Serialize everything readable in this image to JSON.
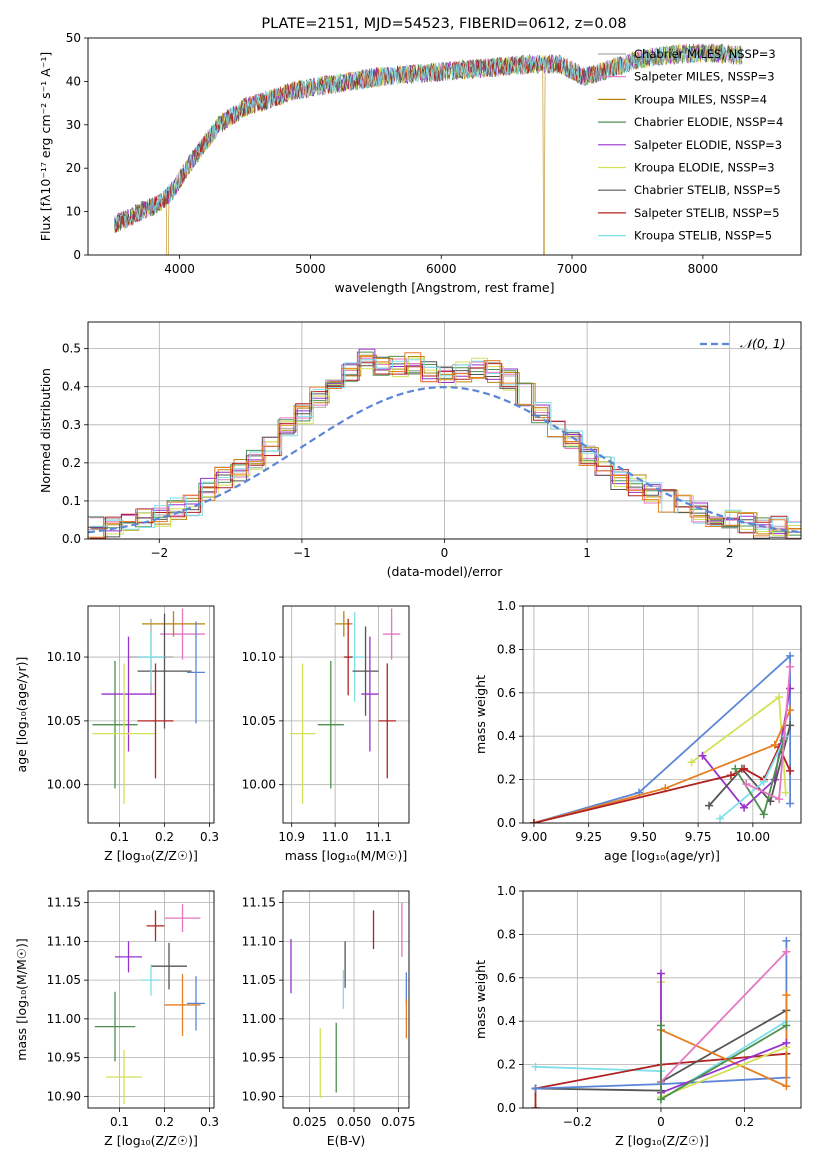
{
  "figure": {
    "title": "PLATE=2151, MJD=54523, FIBERID=0612, z=0.08"
  },
  "colors": {
    "Chabrier MILES": "#aaaaaa",
    "Salpeter MILES": "#e377c2",
    "Kroupa MILES": "#b8860b",
    "Chabrier ELODIE": "#4f8f4f",
    "Salpeter ELODIE": "#9932cc",
    "Kroupa ELODIE": "#d4e157",
    "Chabrier STELIB": "#555555",
    "Salpeter STELIB": "#b22222",
    "Kroupa STELIB": "#80deea",
    "blue": "#5b86d8",
    "orange": "#e67e22"
  },
  "chart_data": [
    {
      "type": "line",
      "id": "spectrum",
      "title": "PLATE=2151, MJD=54523, FIBERID=0612, z=0.08",
      "xlabel": "wavelength [Angstrom, rest frame]",
      "ylabel": "Flux [fλ10⁻¹⁷ erg cm⁻² s⁻¹ A⁻¹]",
      "xlim": [
        3300,
        8750
      ],
      "ylim": [
        0,
        50
      ],
      "xticks": [
        4000,
        5000,
        6000,
        7000,
        8000
      ],
      "yticks": [
        0,
        10,
        20,
        30,
        40,
        50
      ],
      "legend_position": "right",
      "legend": [
        {
          "name": "Chabrier MILES, N_SSP=3",
          "label": "Chabrier MILES, NSSP=3"
        },
        {
          "name": "Salpeter MILES, N_SSP=3",
          "label": "Salpeter MILES, NSSP=3"
        },
        {
          "name": "Kroupa MILES, N_SSP=4",
          "label": "Kroupa MILES, NSSP=4"
        },
        {
          "name": "Chabrier ELODIE, N_SSP=4",
          "label": "Chabrier ELODIE, NSSP=4"
        },
        {
          "name": "Salpeter ELODIE, N_SSP=3",
          "label": "Salpeter ELODIE, NSSP=3"
        },
        {
          "name": "Kroupa ELODIE, N_SSP=3",
          "label": "Kroupa ELODIE, NSSP=3"
        },
        {
          "name": "Chabrier STELIB, N_SSP=5",
          "label": "Chabrier STELIB, NSSP=5"
        },
        {
          "name": "Salpeter STELIB, N_SSP=5",
          "label": "Salpeter STELIB, NSSP=5"
        },
        {
          "name": "Kroupa STELIB, N_SSP=5",
          "label": "Kroupa STELIB, NSSP=5"
        }
      ],
      "continuum": [
        [
          3500,
          7
        ],
        [
          3700,
          10
        ],
        [
          3850,
          12
        ],
        [
          3950,
          15
        ],
        [
          4100,
          22
        ],
        [
          4300,
          30
        ],
        [
          4500,
          34
        ],
        [
          4700,
          36
        ],
        [
          4900,
          38
        ],
        [
          5100,
          39
        ],
        [
          5300,
          40
        ],
        [
          5500,
          41
        ],
        [
          5700,
          41.5
        ],
        [
          5900,
          42
        ],
        [
          6100,
          42.5
        ],
        [
          6300,
          43
        ],
        [
          6500,
          43.5
        ],
        [
          6700,
          44
        ],
        [
          6900,
          44
        ],
        [
          7100,
          41
        ],
        [
          7300,
          43
        ],
        [
          7500,
          45
        ],
        [
          7700,
          46
        ],
        [
          7900,
          46.5
        ],
        [
          8100,
          46.5
        ],
        [
          8300,
          46
        ]
      ]
    },
    {
      "type": "step",
      "id": "residuals",
      "xlabel": "(data-model)/error",
      "ylabel": "Normed distribution",
      "xlim": [
        -2.5,
        2.5
      ],
      "ylim": [
        0,
        0.57
      ],
      "xticks": [
        -2,
        -1,
        0,
        1,
        2
      ],
      "yticks": [
        0.0,
        0.1,
        0.2,
        0.3,
        0.4,
        0.5
      ],
      "legend": [
        {
          "name": "𝒩(0, 1)"
        }
      ],
      "histogram": [
        0.03,
        0.03,
        0.04,
        0.05,
        0.06,
        0.08,
        0.09,
        0.13,
        0.16,
        0.18,
        0.21,
        0.24,
        0.29,
        0.33,
        0.37,
        0.41,
        0.44,
        0.47,
        0.46,
        0.45,
        0.46,
        0.44,
        0.43,
        0.44,
        0.45,
        0.44,
        0.42,
        0.38,
        0.33,
        0.29,
        0.26,
        0.22,
        0.19,
        0.16,
        0.14,
        0.12,
        0.1,
        0.09,
        0.07,
        0.06,
        0.05,
        0.04,
        0.03,
        0.03,
        0.02
      ]
    },
    {
      "type": "scatter",
      "id": "age-vs-Z",
      "xlabel": "Z [log₁₀(Z/Z☉)]",
      "ylabel": "age  [log₁₀(age/yr)]",
      "xlim": [
        0.03,
        0.31
      ],
      "ylim": [
        9.97,
        10.14
      ],
      "xticks": [
        0.1,
        0.2,
        0.3
      ],
      "yticks": [
        10.0,
        10.05,
        10.1
      ],
      "points": [
        {
          "series": "Chabrier MILES",
          "x": 0.17,
          "y": 10.1,
          "xerr": 0.05,
          "yerr": 0.03
        },
        {
          "series": "Salpeter MILES",
          "x": 0.24,
          "y": 10.118,
          "xerr": 0.05,
          "yerr": 0.02
        },
        {
          "series": "Kroupa MILES",
          "x": 0.22,
          "y": 10.126,
          "xerr": 0.07,
          "yerr": 0.01
        },
        {
          "series": "Chabrier ELODIE",
          "x": 0.09,
          "y": 10.047,
          "xerr": 0.05,
          "yerr": 0.05
        },
        {
          "series": "Salpeter ELODIE",
          "x": 0.12,
          "y": 10.071,
          "xerr": 0.06,
          "yerr": 0.045
        },
        {
          "series": "Kroupa ELODIE",
          "x": 0.11,
          "y": 10.04,
          "xerr": 0.07,
          "yerr": 0.055
        },
        {
          "series": "Chabrier STELIB",
          "x": 0.2,
          "y": 10.089,
          "xerr": 0.06,
          "yerr": 0.045
        },
        {
          "series": "Salpeter STELIB",
          "x": 0.18,
          "y": 10.05,
          "xerr": 0.04,
          "yerr": 0.045
        },
        {
          "series": "Kroupa STELIB",
          "x": 0.17,
          "y": 10.1,
          "xerr": 0.03,
          "yerr": 0.02
        },
        {
          "series": "blue",
          "x": 0.27,
          "y": 10.088,
          "xerr": 0.02,
          "yerr": 0.04
        }
      ]
    },
    {
      "type": "scatter",
      "id": "age-vs-mass",
      "xlabel": "mass [log₁₀(M/M☉)]",
      "ylabel": "",
      "xlim": [
        10.88,
        11.17
      ],
      "ylim": [
        9.97,
        10.14
      ],
      "xticks": [
        10.9,
        11.0,
        11.1
      ],
      "yticks": [
        10.0,
        10.05,
        10.1
      ],
      "points": [
        {
          "series": "Kroupa ELODIE",
          "x": 10.925,
          "y": 10.04,
          "xerr": 0.03,
          "yerr": 0.055
        },
        {
          "series": "Chabrier ELODIE",
          "x": 10.99,
          "y": 10.047,
          "xerr": 0.03,
          "yerr": 0.05
        },
        {
          "series": "Kroupa MILES",
          "x": 11.02,
          "y": 10.126,
          "xerr": 0.02,
          "yerr": 0.01
        },
        {
          "series": "Kroupa STELIB",
          "x": 11.045,
          "y": 10.1,
          "xerr": 0.02,
          "yerr": 0.035
        },
        {
          "series": "Chabrier STELIB",
          "x": 11.07,
          "y": 10.089,
          "xerr": 0.03,
          "yerr": 0.035
        },
        {
          "series": "Salpeter ELODIE",
          "x": 11.08,
          "y": 10.071,
          "xerr": 0.02,
          "yerr": 0.045
        },
        {
          "series": "Salpeter STELIB",
          "x": 11.12,
          "y": 10.05,
          "xerr": 0.02,
          "yerr": 0.045
        },
        {
          "series": "Salpeter MILES",
          "x": 11.13,
          "y": 10.118,
          "xerr": 0.02,
          "yerr": 0.02
        },
        {
          "series": "Salpeter STELIB",
          "x": 11.03,
          "y": 10.1,
          "xerr": 0.01,
          "yerr": 0.03
        }
      ]
    },
    {
      "type": "line",
      "id": "weight-vs-age",
      "xlabel": "age  [log₁₀(age/yr)]",
      "ylabel": "mass weight",
      "xlim": [
        8.95,
        10.22
      ],
      "ylim": [
        0,
        1.0
      ],
      "xticks": [
        9.0,
        9.25,
        9.5,
        9.75,
        10.0
      ],
      "yticks": [
        0.0,
        0.2,
        0.4,
        0.6,
        0.8,
        1.0
      ],
      "series": [
        {
          "series": "blue",
          "x": [
            9.0,
            9.48,
            10.17,
            10.17
          ],
          "y": [
            0.0,
            0.14,
            0.77,
            0.09
          ]
        },
        {
          "series": "Kroupa ELODIE",
          "x": [
            9.72,
            10.12,
            10.15
          ],
          "y": [
            0.28,
            0.58,
            0.14
          ]
        },
        {
          "series": "Salpeter ELODIE",
          "x": [
            9.77,
            9.96,
            10.1,
            10.17
          ],
          "y": [
            0.31,
            0.07,
            0.2,
            0.62
          ]
        },
        {
          "series": "orange",
          "x": [
            9.0,
            9.6,
            10.1,
            10.17
          ],
          "y": [
            0.0,
            0.16,
            0.36,
            0.52
          ]
        },
        {
          "series": "Chabrier STELIB",
          "x": [
            9.8,
            9.95,
            10.08,
            10.17
          ],
          "y": [
            0.08,
            0.25,
            0.1,
            0.45
          ]
        },
        {
          "series": "Salpeter STELIB",
          "x": [
            9.0,
            9.9,
            9.96,
            10.05,
            10.12,
            10.17
          ],
          "y": [
            0.0,
            0.22,
            0.25,
            0.2,
            0.35,
            0.24
          ]
        },
        {
          "series": "Kroupa STELIB",
          "x": [
            9.85,
            10.05,
            10.15
          ],
          "y": [
            0.02,
            0.19,
            0.4
          ]
        },
        {
          "series": "Chabrier ELODIE",
          "x": [
            9.92,
            10.05,
            10.14
          ],
          "y": [
            0.25,
            0.04,
            0.38
          ]
        },
        {
          "series": "Salpeter MILES",
          "x": [
            9.97,
            10.12,
            10.17
          ],
          "y": [
            0.18,
            0.11,
            0.72
          ]
        }
      ]
    },
    {
      "type": "scatter",
      "id": "mass-vs-Z",
      "xlabel": "Z [log₁₀(Z/Z☉)]",
      "ylabel": "mass [log₁₀(M/M☉)]",
      "xlim": [
        0.03,
        0.31
      ],
      "ylim": [
        10.885,
        11.165
      ],
      "xticks": [
        0.1,
        0.2,
        0.3
      ],
      "yticks": [
        10.9,
        10.95,
        11.0,
        11.05,
        11.1,
        11.15
      ],
      "points": [
        {
          "series": "Salpeter MILES",
          "x": 0.24,
          "y": 11.13,
          "xerr": 0.04,
          "yerr": 0.018
        },
        {
          "series": "Salpeter STELIB",
          "x": 0.18,
          "y": 11.12,
          "xerr": 0.02,
          "yerr": 0.02
        },
        {
          "series": "Salpeter ELODIE",
          "x": 0.12,
          "y": 11.08,
          "xerr": 0.03,
          "yerr": 0.02
        },
        {
          "series": "Chabrier STELIB",
          "x": 0.21,
          "y": 11.068,
          "xerr": 0.04,
          "yerr": 0.03
        },
        {
          "series": "Kroupa STELIB",
          "x": 0.17,
          "y": 11.05,
          "xerr": 0.02,
          "yerr": 0.02
        },
        {
          "series": "blue",
          "x": 0.27,
          "y": 11.02,
          "xerr": 0.02,
          "yerr": 0.035
        },
        {
          "series": "orange",
          "x": 0.24,
          "y": 11.018,
          "xerr": 0.04,
          "yerr": 0.04
        },
        {
          "series": "Chabrier ELODIE",
          "x": 0.09,
          "y": 10.99,
          "xerr": 0.045,
          "yerr": 0.045
        },
        {
          "series": "Kroupa ELODIE",
          "x": 0.11,
          "y": 10.925,
          "xerr": 0.04,
          "yerr": 0.035
        }
      ]
    },
    {
      "type": "scatter",
      "id": "mass-vs-EBV",
      "xlabel": "E(B-V)",
      "ylabel": "",
      "xlim": [
        0.01,
        0.081
      ],
      "ylim": [
        10.885,
        11.165
      ],
      "xticks": [
        0.025,
        0.05,
        0.075
      ],
      "yticks": [
        10.9,
        10.95,
        11.0,
        11.05,
        11.1,
        11.15
      ],
      "points": [
        {
          "series": "Salpeter ELODIE",
          "x": 0.0145,
          "y": 11.068,
          "yerr": 0.035
        },
        {
          "series": "Kroupa ELODIE",
          "x": 0.031,
          "y": 10.943,
          "yerr": 0.045
        },
        {
          "series": "Chabrier ELODIE",
          "x": 0.04,
          "y": 10.95,
          "yerr": 0.045
        },
        {
          "series": "Chabrier STELIB",
          "x": 0.045,
          "y": 11.07,
          "yerr": 0.03
        },
        {
          "series": "Kroupa STELIB",
          "x": 0.044,
          "y": 11.038,
          "yerr": 0.025
        },
        {
          "series": "Salpeter STELIB",
          "x": 0.061,
          "y": 11.115,
          "yerr": 0.025
        },
        {
          "series": "Salpeter MILES",
          "x": 0.077,
          "y": 11.115,
          "yerr": 0.035
        },
        {
          "series": "blue",
          "x": 0.0795,
          "y": 11.04,
          "yerr": 0.02
        },
        {
          "series": "orange",
          "x": 0.0795,
          "y": 11.0,
          "yerr": 0.025
        }
      ]
    },
    {
      "type": "line",
      "id": "weight-vs-Z",
      "xlabel": "Z [log₁₀(Z/Z☉)]",
      "ylabel": "mass weight",
      "xlim": [
        -0.33,
        0.335
      ],
      "ylim": [
        0,
        1.0
      ],
      "xticks": [
        -0.2,
        0.0,
        0.2
      ],
      "yticks": [
        0.0,
        0.2,
        0.4,
        0.6,
        0.8,
        1.0
      ],
      "series": [
        {
          "series": "Kroupa STELIB",
          "x": [
            -0.3,
            0.0,
            0.0,
            0.3
          ],
          "y": [
            0.19,
            0.17,
            0.04,
            0.4
          ]
        },
        {
          "series": "Salpeter STELIB",
          "x": [
            -0.3,
            -0.3,
            0.0,
            0.3
          ],
          "y": [
            0.0,
            0.09,
            0.2,
            0.25
          ]
        },
        {
          "series": "Chabrier STELIB",
          "x": [
            -0.3,
            0.0,
            0.0,
            0.3
          ],
          "y": [
            0.09,
            0.08,
            0.12,
            0.45
          ]
        },
        {
          "series": "blue",
          "x": [
            -0.3,
            0.0,
            0.3,
            0.3
          ],
          "y": [
            0.09,
            0.11,
            0.14,
            0.77
          ]
        },
        {
          "series": "orange",
          "x": [
            0.0,
            0.3,
            0.3
          ],
          "y": [
            0.36,
            0.1,
            0.52
          ]
        },
        {
          "series": "Kroupa ELODIE",
          "x": [
            0.0,
            0.0,
            0.3
          ],
          "y": [
            0.58,
            0.05,
            0.28
          ]
        },
        {
          "series": "Salpeter ELODIE",
          "x": [
            0.0,
            0.0,
            0.3
          ],
          "y": [
            0.62,
            0.07,
            0.3
          ]
        },
        {
          "series": "Salpeter MILES",
          "x": [
            0.0,
            0.3
          ],
          "y": [
            0.12,
            0.72
          ]
        },
        {
          "series": "Chabrier ELODIE",
          "x": [
            0.0,
            0.0,
            0.3
          ],
          "y": [
            0.38,
            0.04,
            0.38
          ]
        }
      ]
    }
  ]
}
